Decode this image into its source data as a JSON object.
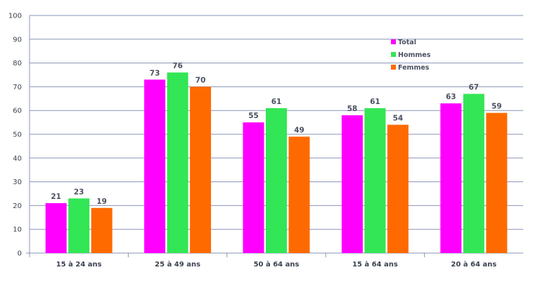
{
  "chart_data": {
    "type": "bar",
    "categories": [
      "15 à 24 ans",
      "25 à 49 ans",
      "50 à 64 ans",
      "15 à 64 ans",
      "20 à 64 ans"
    ],
    "series": [
      {
        "name": "Total",
        "color": "#ff00ff",
        "values": [
          21,
          73,
          55,
          58,
          63
        ]
      },
      {
        "name": "Hommes",
        "color": "#33e655",
        "values": [
          23,
          76,
          61,
          61,
          67
        ]
      },
      {
        "name": "Femmes",
        "color": "#ff6a00",
        "values": [
          19,
          70,
          49,
          54,
          59
        ]
      }
    ],
    "ylim": [
      0,
      100
    ],
    "yticks": [
      0,
      10,
      20,
      30,
      40,
      50,
      60,
      70,
      80,
      90,
      100
    ],
    "grid": true,
    "legend_position": "top-right",
    "data_labels": true
  }
}
